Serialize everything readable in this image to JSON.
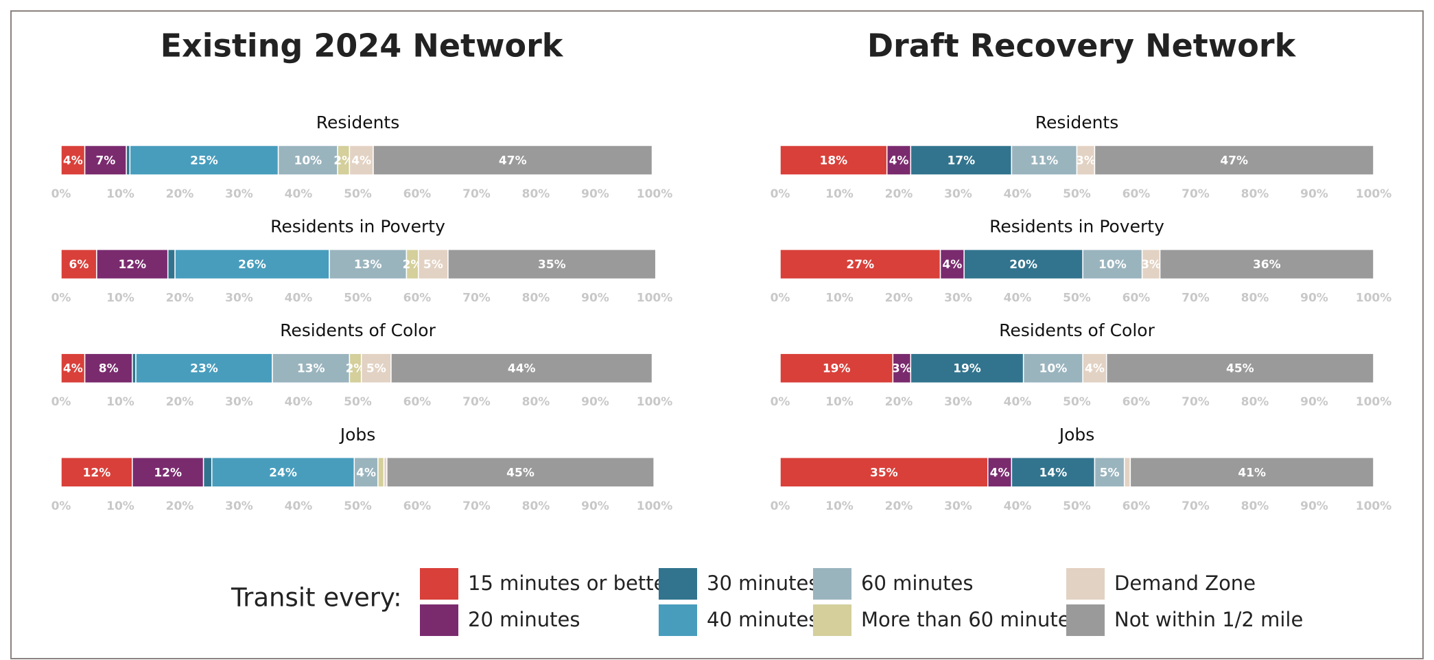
{
  "chart_data": [
    {
      "type": "stacked-bar",
      "orientation": "horizontal",
      "title": "Existing 2024 Network",
      "categories": [
        "Residents",
        "Residents in Poverty",
        "Residents of Color",
        "Jobs"
      ],
      "xlim": [
        0,
        100
      ],
      "xticks": [
        {
          "value": 0,
          "label": "0%"
        },
        {
          "value": 10,
          "label": "10%"
        },
        {
          "value": 20,
          "label": "20%"
        },
        {
          "value": 30,
          "label": "30%"
        },
        {
          "value": 40,
          "label": "40%"
        },
        {
          "value": 50,
          "label": "50%"
        },
        {
          "value": 60,
          "label": "60%"
        },
        {
          "value": 70,
          "label": "70%"
        },
        {
          "value": 80,
          "label": "80%"
        },
        {
          "value": 90,
          "label": "90%"
        },
        {
          "value": 100,
          "label": "100%"
        }
      ],
      "legend_title": "Transit every:",
      "series": [
        {
          "name": "15 minutes or better",
          "color": "#d9403a",
          "values": [
            4,
            6,
            4,
            12
          ],
          "value_labels": [
            "4%",
            "6%",
            "4%",
            "12%"
          ]
        },
        {
          "name": "20 minutes",
          "color": "#7a2b6e",
          "values": [
            7,
            12,
            8,
            12
          ],
          "value_labels": [
            "7%",
            "12%",
            "8%",
            "12%"
          ]
        },
        {
          "name": "30 minutes",
          "color": "#32748e",
          "values": [
            0.6,
            1.2,
            0.6,
            1.4
          ],
          "value_labels": [
            null,
            null,
            null,
            null
          ]
        },
        {
          "name": "40 minutes",
          "color": "#489dbd",
          "values": [
            25,
            26,
            23,
            24
          ],
          "value_labels": [
            "25%",
            "26%",
            "23%",
            "24%"
          ]
        },
        {
          "name": "60 minutes",
          "color": "#9ab4be",
          "values": [
            10,
            13,
            13,
            4
          ],
          "value_labels": [
            "10%",
            "13%",
            "13%",
            "4%"
          ]
        },
        {
          "name": "More than 60 minutes",
          "color": "#d4cf9b",
          "values": [
            2,
            2,
            2,
            1
          ],
          "value_labels": [
            "2%",
            "2%",
            "2%",
            null
          ]
        },
        {
          "name": "Demand Zone",
          "color": "#e2d2c3",
          "values": [
            4,
            5,
            5,
            0.5
          ],
          "value_labels": [
            "4%",
            "5%",
            "5%",
            null
          ]
        },
        {
          "name": "Not within 1/2 mile",
          "color": "#9a9a9a",
          "values": [
            47,
            35,
            44,
            45
          ],
          "value_labels": [
            "47%",
            "35%",
            "44%",
            "45%"
          ]
        }
      ]
    },
    {
      "type": "stacked-bar",
      "orientation": "horizontal",
      "title": "Draft Recovery Network",
      "categories": [
        "Residents",
        "Residents in Poverty",
        "Residents of Color",
        "Jobs"
      ],
      "xlim": [
        0,
        100
      ],
      "xticks": [
        {
          "value": 0,
          "label": "0%"
        },
        {
          "value": 10,
          "label": "10%"
        },
        {
          "value": 20,
          "label": "20%"
        },
        {
          "value": 30,
          "label": "30%"
        },
        {
          "value": 40,
          "label": "40%"
        },
        {
          "value": 50,
          "label": "50%"
        },
        {
          "value": 60,
          "label": "60%"
        },
        {
          "value": 70,
          "label": "70%"
        },
        {
          "value": 80,
          "label": "80%"
        },
        {
          "value": 90,
          "label": "90%"
        },
        {
          "value": 100,
          "label": "100%"
        }
      ],
      "series": [
        {
          "name": "15 minutes or better",
          "color": "#d9403a",
          "values": [
            18,
            27,
            19,
            35
          ],
          "value_labels": [
            "18%",
            "27%",
            "19%",
            "35%"
          ]
        },
        {
          "name": "20 minutes",
          "color": "#7a2b6e",
          "values": [
            4,
            4,
            3,
            4
          ],
          "value_labels": [
            "4%",
            "4%",
            "3%",
            "4%"
          ]
        },
        {
          "name": "30 minutes",
          "color": "#32748e",
          "values": [
            17,
            20,
            19,
            14
          ],
          "value_labels": [
            "17%",
            "20%",
            "19%",
            "14%"
          ]
        },
        {
          "name": "40 minutes",
          "color": "#489dbd",
          "values": [
            0,
            0,
            0,
            0
          ],
          "value_labels": [
            null,
            null,
            null,
            null
          ]
        },
        {
          "name": "60 minutes",
          "color": "#9ab4be",
          "values": [
            11,
            10,
            10,
            5
          ],
          "value_labels": [
            "11%",
            "10%",
            "10%",
            "5%"
          ]
        },
        {
          "name": "More than 60 minutes",
          "color": "#d4cf9b",
          "values": [
            0,
            0,
            0,
            0
          ],
          "value_labels": [
            null,
            null,
            null,
            null
          ]
        },
        {
          "name": "Demand Zone",
          "color": "#e2d2c3",
          "values": [
            3,
            3,
            4,
            1
          ],
          "value_labels": [
            "3%",
            "3%",
            "4%",
            null
          ]
        },
        {
          "name": "Not within 1/2 mile",
          "color": "#9a9a9a",
          "values": [
            47,
            36,
            45,
            41
          ],
          "value_labels": [
            "47%",
            "36%",
            "45%",
            "41%"
          ]
        }
      ]
    }
  ]
}
